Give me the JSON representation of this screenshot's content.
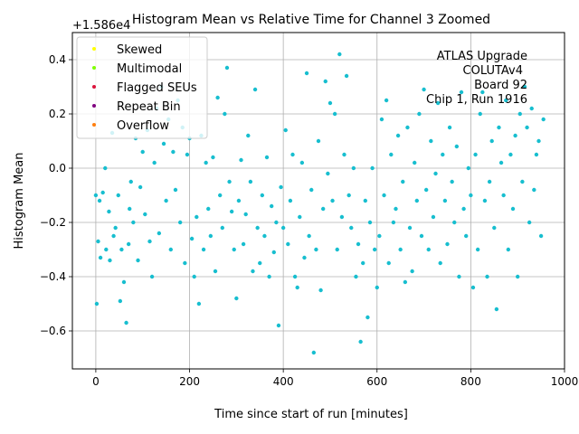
{
  "chart_data": {
    "type": "scatter",
    "title": "Histogram Mean vs Relative Time for Channel 3 Zoomed",
    "xlabel": "Time since start of run [minutes]",
    "ylabel": "Histogram Mean",
    "offset_label": "+1.586e4",
    "xlim": [
      -50,
      1000
    ],
    "ylim": [
      -0.74,
      0.5
    ],
    "xticks": [
      0,
      200,
      400,
      600,
      800,
      1000
    ],
    "yticks": [
      -0.6,
      -0.4,
      -0.2,
      0.0,
      0.2,
      0.4
    ],
    "xtick_labels": [
      "0",
      "200",
      "400",
      "600",
      "800",
      "1000"
    ],
    "ytick_labels": [
      "−0.6",
      "−0.4",
      "−0.2",
      "0.0",
      "0.2",
      "0.4"
    ],
    "grid": true,
    "legend_position": "top-left",
    "legend": [
      {
        "label": "Skewed",
        "color": "#ffff00"
      },
      {
        "label": "Multimodal",
        "color": "#7fff00"
      },
      {
        "label": "Flagged SEUs",
        "color": "#dc143c"
      },
      {
        "label": "Repeat Bin",
        "color": "#800080"
      },
      {
        "label": "Overflow",
        "color": "#ff7f0e"
      }
    ],
    "annotation": [
      "ATLAS Upgrade",
      "COLUTAv4",
      "Board 92",
      "Chip 1, Run 1916"
    ],
    "series": [
      {
        "color": "#17becf",
        "points": [
          [
            0,
            -0.1
          ],
          [
            2,
            -0.5
          ],
          [
            5,
            -0.27
          ],
          [
            8,
            -0.12
          ],
          [
            10,
            -0.33
          ],
          [
            15,
            -0.09
          ],
          [
            20,
            0.0
          ],
          [
            22,
            -0.3
          ],
          [
            28,
            -0.16
          ],
          [
            30,
            -0.34
          ],
          [
            35,
            0.13
          ],
          [
            38,
            -0.25
          ],
          [
            42,
            -0.22
          ],
          [
            48,
            -0.1
          ],
          [
            52,
            -0.49
          ],
          [
            55,
            -0.3
          ],
          [
            60,
            -0.42
          ],
          [
            65,
            -0.57
          ],
          [
            70,
            -0.28
          ],
          [
            72,
            -0.15
          ],
          [
            75,
            -0.05
          ],
          [
            80,
            -0.2
          ],
          [
            85,
            0.11
          ],
          [
            90,
            -0.34
          ],
          [
            95,
            -0.07
          ],
          [
            100,
            0.06
          ],
          [
            105,
            -0.17
          ],
          [
            110,
            0.14
          ],
          [
            115,
            -0.27
          ],
          [
            120,
            -0.4
          ],
          [
            125,
            0.02
          ],
          [
            130,
            0.22
          ],
          [
            135,
            -0.24
          ],
          [
            140,
            0.3
          ],
          [
            145,
            0.09
          ],
          [
            150,
            -0.12
          ],
          [
            155,
            0.18
          ],
          [
            160,
            -0.3
          ],
          [
            165,
            0.06
          ],
          [
            170,
            -0.08
          ],
          [
            175,
            0.25
          ],
          [
            180,
            -0.2
          ],
          [
            185,
            0.15
          ],
          [
            190,
            -0.35
          ],
          [
            195,
            0.05
          ],
          [
            200,
            0.11
          ],
          [
            205,
            -0.26
          ],
          [
            210,
            -0.4
          ],
          [
            215,
            -0.18
          ],
          [
            220,
            -0.5
          ],
          [
            225,
            0.12
          ],
          [
            230,
            -0.3
          ],
          [
            235,
            0.02
          ],
          [
            240,
            -0.15
          ],
          [
            245,
            -0.25
          ],
          [
            250,
            0.04
          ],
          [
            255,
            -0.38
          ],
          [
            260,
            0.26
          ],
          [
            265,
            -0.1
          ],
          [
            270,
            -0.22
          ],
          [
            275,
            0.2
          ],
          [
            280,
            0.37
          ],
          [
            285,
            -0.05
          ],
          [
            290,
            -0.16
          ],
          [
            295,
            -0.3
          ],
          [
            300,
            -0.48
          ],
          [
            305,
            -0.12
          ],
          [
            310,
            0.03
          ],
          [
            315,
            -0.28
          ],
          [
            320,
            -0.17
          ],
          [
            325,
            0.12
          ],
          [
            330,
            -0.05
          ],
          [
            335,
            -0.38
          ],
          [
            340,
            0.29
          ],
          [
            345,
            -0.22
          ],
          [
            350,
            -0.35
          ],
          [
            355,
            -0.1
          ],
          [
            360,
            -0.25
          ],
          [
            365,
            0.04
          ],
          [
            370,
            -0.4
          ],
          [
            375,
            -0.14
          ],
          [
            380,
            -0.31
          ],
          [
            385,
            -0.2
          ],
          [
            390,
            -0.58
          ],
          [
            395,
            -0.07
          ],
          [
            400,
            -0.22
          ],
          [
            405,
            0.14
          ],
          [
            410,
            -0.28
          ],
          [
            415,
            -0.12
          ],
          [
            420,
            0.05
          ],
          [
            425,
            -0.4
          ],
          [
            430,
            -0.44
          ],
          [
            435,
            -0.18
          ],
          [
            440,
            0.02
          ],
          [
            445,
            -0.33
          ],
          [
            450,
            0.35
          ],
          [
            455,
            -0.25
          ],
          [
            460,
            -0.08
          ],
          [
            465,
            -0.68
          ],
          [
            470,
            -0.3
          ],
          [
            475,
            0.1
          ],
          [
            480,
            -0.45
          ],
          [
            485,
            -0.15
          ],
          [
            490,
            0.32
          ],
          [
            495,
            -0.02
          ],
          [
            500,
            0.24
          ],
          [
            505,
            -0.12
          ],
          [
            510,
            0.2
          ],
          [
            515,
            -0.3
          ],
          [
            520,
            0.42
          ],
          [
            525,
            -0.18
          ],
          [
            530,
            0.05
          ],
          [
            535,
            0.34
          ],
          [
            540,
            -0.1
          ],
          [
            545,
            -0.22
          ],
          [
            550,
            0.0
          ],
          [
            555,
            -0.4
          ],
          [
            560,
            -0.28
          ],
          [
            565,
            -0.64
          ],
          [
            570,
            -0.35
          ],
          [
            575,
            -0.12
          ],
          [
            580,
            -0.55
          ],
          [
            585,
            -0.2
          ],
          [
            590,
            0.0
          ],
          [
            595,
            -0.3
          ],
          [
            600,
            -0.44
          ],
          [
            605,
            -0.25
          ],
          [
            610,
            0.18
          ],
          [
            615,
            -0.1
          ],
          [
            620,
            0.25
          ],
          [
            625,
            -0.35
          ],
          [
            630,
            0.05
          ],
          [
            635,
            -0.2
          ],
          [
            640,
            -0.15
          ],
          [
            645,
            0.12
          ],
          [
            650,
            -0.3
          ],
          [
            655,
            -0.05
          ],
          [
            660,
            -0.42
          ],
          [
            665,
            0.15
          ],
          [
            670,
            -0.22
          ],
          [
            675,
            -0.38
          ],
          [
            680,
            0.02
          ],
          [
            685,
            -0.12
          ],
          [
            690,
            0.2
          ],
          [
            695,
            -0.25
          ],
          [
            700,
            0.29
          ],
          [
            705,
            -0.08
          ],
          [
            710,
            -0.3
          ],
          [
            715,
            0.1
          ],
          [
            720,
            -0.18
          ],
          [
            725,
            -0.02
          ],
          [
            730,
            0.24
          ],
          [
            735,
            -0.35
          ],
          [
            740,
            0.05
          ],
          [
            745,
            -0.12
          ],
          [
            750,
            -0.28
          ],
          [
            755,
            0.15
          ],
          [
            760,
            -0.05
          ],
          [
            765,
            -0.2
          ],
          [
            770,
            0.08
          ],
          [
            775,
            -0.4
          ],
          [
            780,
            0.28
          ],
          [
            785,
            -0.15
          ],
          [
            790,
            -0.25
          ],
          [
            795,
            0.0
          ],
          [
            800,
            -0.1
          ],
          [
            805,
            -0.44
          ],
          [
            810,
            0.05
          ],
          [
            815,
            -0.3
          ],
          [
            820,
            0.2
          ],
          [
            825,
            0.28
          ],
          [
            830,
            -0.12
          ],
          [
            835,
            -0.4
          ],
          [
            840,
            -0.05
          ],
          [
            845,
            0.1
          ],
          [
            850,
            -0.22
          ],
          [
            855,
            -0.52
          ],
          [
            860,
            0.15
          ],
          [
            865,
            0.02
          ],
          [
            870,
            -0.1
          ],
          [
            875,
            0.25
          ],
          [
            880,
            -0.3
          ],
          [
            885,
            0.05
          ],
          [
            890,
            -0.15
          ],
          [
            895,
            0.12
          ],
          [
            900,
            -0.4
          ],
          [
            905,
            0.2
          ],
          [
            910,
            -0.05
          ],
          [
            915,
            0.3
          ],
          [
            920,
            0.15
          ],
          [
            925,
            -0.2
          ],
          [
            930,
            0.22
          ],
          [
            935,
            -0.08
          ],
          [
            940,
            0.05
          ],
          [
            945,
            0.1
          ],
          [
            950,
            -0.25
          ],
          [
            955,
            0.18
          ]
        ]
      }
    ]
  }
}
